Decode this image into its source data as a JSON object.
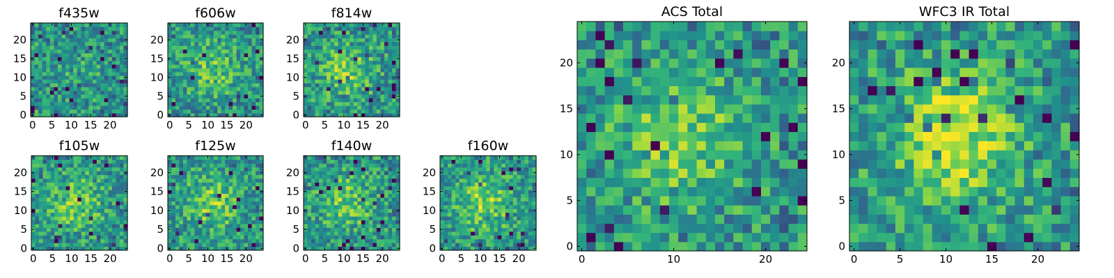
{
  "chart_data": [
    {
      "type": "heatmap",
      "title": "f435w",
      "n": 25,
      "seed": 101,
      "blob": 0.05,
      "extent": 24,
      "xticks": [
        0,
        5,
        10,
        15,
        20
      ],
      "yticks": [
        0,
        5,
        10,
        15,
        20
      ]
    },
    {
      "type": "heatmap",
      "title": "f606w",
      "n": 25,
      "seed": 202,
      "blob": 0.25,
      "extent": 24,
      "xticks": [
        0,
        5,
        10,
        15,
        20
      ],
      "yticks": [
        0,
        5,
        10,
        15,
        20
      ]
    },
    {
      "type": "heatmap",
      "title": "f814w",
      "n": 25,
      "seed": 303,
      "blob": 0.3,
      "extent": 24,
      "xticks": [
        0,
        5,
        10,
        15,
        20
      ],
      "yticks": [
        0,
        5,
        10,
        15,
        20
      ]
    },
    {
      "type": "heatmap",
      "title": "f105w",
      "n": 25,
      "seed": 404,
      "blob": 0.3,
      "extent": 24,
      "xticks": [
        0,
        5,
        10,
        15,
        20
      ],
      "yticks": [
        0,
        5,
        10,
        15,
        20
      ]
    },
    {
      "type": "heatmap",
      "title": "f125w",
      "n": 25,
      "seed": 505,
      "blob": 0.3,
      "extent": 24,
      "xticks": [
        0,
        5,
        10,
        15,
        20
      ],
      "yticks": [
        0,
        5,
        10,
        15,
        20
      ]
    },
    {
      "type": "heatmap",
      "title": "f140w",
      "n": 25,
      "seed": 606,
      "blob": 0.3,
      "extent": 24,
      "xticks": [
        0,
        5,
        10,
        15,
        20
      ],
      "yticks": [
        0,
        5,
        10,
        15,
        20
      ]
    },
    {
      "type": "heatmap",
      "title": "f160w",
      "n": 25,
      "seed": 707,
      "blob": 0.35,
      "extent": 24,
      "xticks": [
        0,
        5,
        10,
        15,
        20
      ],
      "yticks": [
        0,
        5,
        10,
        15,
        20
      ]
    },
    {
      "type": "heatmap",
      "title": "ACS Total",
      "n": 25,
      "seed": 808,
      "blob": 0.3,
      "extent": 24,
      "xticks": [
        0,
        10,
        20
      ],
      "yticks": [
        0,
        5,
        10,
        15,
        20
      ]
    },
    {
      "type": "heatmap",
      "title": "WFC3 IR Total",
      "n": 25,
      "seed": 909,
      "blob": 0.45,
      "extent": 24,
      "xticks": [
        0,
        5,
        10,
        15,
        20
      ],
      "yticks": [
        0,
        5,
        10,
        15,
        20
      ]
    }
  ],
  "colormap": [
    "#440154",
    "#31688e",
    "#21918c",
    "#35b779",
    "#90d743",
    "#fde725"
  ]
}
